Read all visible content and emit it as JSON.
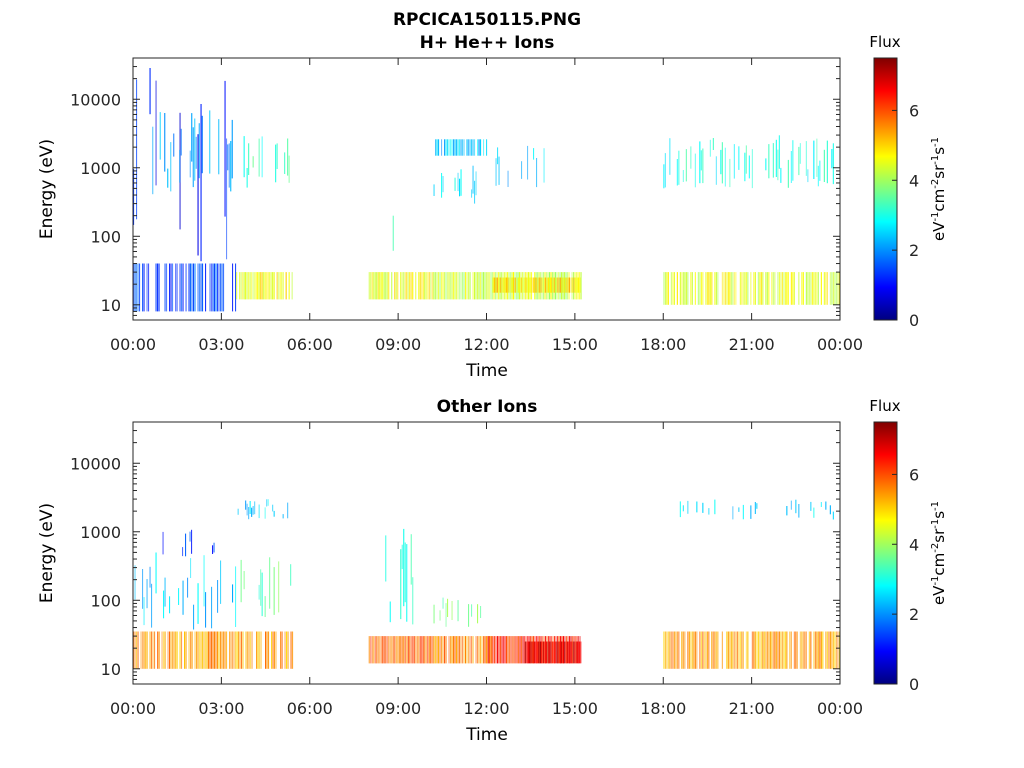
{
  "figure": {
    "file_title": "RPCICA150115.PNG"
  },
  "chart_data": [
    {
      "type": "heatmap",
      "title": "H+ He++ Ions",
      "xlabel": "Time",
      "ylabel": "Energy (eV)",
      "x_ticks": [
        "00:00",
        "03:00",
        "06:00",
        "09:00",
        "12:00",
        "15:00",
        "18:00",
        "21:00",
        "00:00"
      ],
      "x_range_hours": [
        0,
        24
      ],
      "y_scale": "log",
      "y_ticks": [
        "10",
        "100",
        "1000",
        "10000"
      ],
      "y_range_ev": [
        6,
        40000
      ],
      "colorbar": {
        "title": "Flux",
        "unit_label": "eV-1cm-2sr-1s-1",
        "ticks": [
          "0",
          "2",
          "4",
          "6"
        ],
        "range": [
          0,
          7.5
        ],
        "colormap": "jet"
      },
      "grid": false,
      "blocks": [
        {
          "t": [
            0.0,
            3.5
          ],
          "e": [
            8,
            40
          ],
          "flux": 1.5,
          "density": 0.6
        },
        {
          "t": [
            0.0,
            3.5
          ],
          "e": [
            40,
            30000
          ],
          "flux": 1.0,
          "density": 0.1
        },
        {
          "t": [
            0.5,
            3.5
          ],
          "e": [
            400,
            7000
          ],
          "flux": 2.2,
          "density": 0.5
        },
        {
          "t": [
            3.5,
            5.4
          ],
          "e": [
            12,
            30
          ],
          "flux": 4.6,
          "density": 0.8
        },
        {
          "t": [
            3.5,
            5.4
          ],
          "e": [
            500,
            3000
          ],
          "flux": 3.2,
          "density": 0.45
        },
        {
          "t": [
            8.0,
            10.2
          ],
          "e": [
            12,
            30
          ],
          "flux": 4.6,
          "density": 0.85
        },
        {
          "t": [
            8.0,
            9.5
          ],
          "e": [
            50,
            600
          ],
          "flux": 3.0,
          "density": 0.15
        },
        {
          "t": [
            10.2,
            15.2
          ],
          "e": [
            12,
            30
          ],
          "flux": 4.3,
          "density": 0.95
        },
        {
          "t": [
            12.2,
            15.2
          ],
          "e": [
            15,
            25
          ],
          "flux": 4.9,
          "density": 1.0
        },
        {
          "t": [
            10.2,
            12.0
          ],
          "e": [
            1500,
            2600
          ],
          "flux": 2.4,
          "density": 0.7
        },
        {
          "t": [
            10.2,
            11.8
          ],
          "e": [
            300,
            1100
          ],
          "flux": 2.6,
          "density": 0.4
        },
        {
          "t": [
            12.0,
            14.0
          ],
          "e": [
            500,
            2600
          ],
          "flux": 2.4,
          "density": 0.25
        },
        {
          "t": [
            18.0,
            24.0
          ],
          "e": [
            10,
            30
          ],
          "flux": 4.5,
          "density": 0.8
        },
        {
          "t": [
            18.0,
            24.0
          ],
          "e": [
            500,
            3000
          ],
          "flux": 3.0,
          "density": 0.35
        }
      ]
    },
    {
      "type": "heatmap",
      "title": "Other Ions",
      "xlabel": "Time",
      "ylabel": "Energy (eV)",
      "x_ticks": [
        "00:00",
        "03:00",
        "06:00",
        "09:00",
        "12:00",
        "15:00",
        "18:00",
        "21:00",
        "00:00"
      ],
      "x_range_hours": [
        0,
        24
      ],
      "y_scale": "log",
      "y_ticks": [
        "10",
        "100",
        "1000",
        "10000"
      ],
      "y_range_ev": [
        6,
        40000
      ],
      "colorbar": {
        "title": "Flux",
        "unit_label": "eV-1cm-2sr-1s-1",
        "ticks": [
          "0",
          "2",
          "4",
          "6"
        ],
        "range": [
          0,
          7.5
        ],
        "colormap": "jet"
      },
      "grid": false,
      "blocks": [
        {
          "t": [
            0.0,
            5.4
          ],
          "e": [
            10,
            35
          ],
          "flux": 5.4,
          "density": 0.85
        },
        {
          "t": [
            0.0,
            3.5
          ],
          "e": [
            35,
            500
          ],
          "flux": 2.4,
          "density": 0.3
        },
        {
          "t": [
            1.0,
            3.3
          ],
          "e": [
            400,
            1300
          ],
          "flux": 1.3,
          "density": 0.15
        },
        {
          "t": [
            3.5,
            5.4
          ],
          "e": [
            50,
            500
          ],
          "flux": 3.5,
          "density": 0.12
        },
        {
          "t": [
            3.5,
            5.4
          ],
          "e": [
            1500,
            3000
          ],
          "flux": 2.5,
          "density": 0.3
        },
        {
          "t": [
            8.0,
            10.2
          ],
          "e": [
            12,
            30
          ],
          "flux": 5.8,
          "density": 0.95
        },
        {
          "t": [
            8.0,
            9.6
          ],
          "e": [
            40,
            1200
          ],
          "flux": 3.2,
          "density": 0.3
        },
        {
          "t": [
            10.2,
            12.2
          ],
          "e": [
            12,
            30
          ],
          "flux": 5.6,
          "density": 0.9
        },
        {
          "t": [
            10.2,
            12.0
          ],
          "e": [
            40,
            120
          ],
          "flux": 3.8,
          "density": 0.25
        },
        {
          "t": [
            12.0,
            15.2
          ],
          "e": [
            12,
            30
          ],
          "flux": 6.3,
          "density": 1.0
        },
        {
          "t": [
            13.3,
            15.2
          ],
          "e": [
            12,
            25
          ],
          "flux": 6.8,
          "density": 1.0
        },
        {
          "t": [
            18.0,
            24.0
          ],
          "e": [
            10,
            35
          ],
          "flux": 5.4,
          "density": 0.85
        },
        {
          "t": [
            18.0,
            24.0
          ],
          "e": [
            1500,
            3000
          ],
          "flux": 2.6,
          "density": 0.2
        }
      ]
    }
  ]
}
